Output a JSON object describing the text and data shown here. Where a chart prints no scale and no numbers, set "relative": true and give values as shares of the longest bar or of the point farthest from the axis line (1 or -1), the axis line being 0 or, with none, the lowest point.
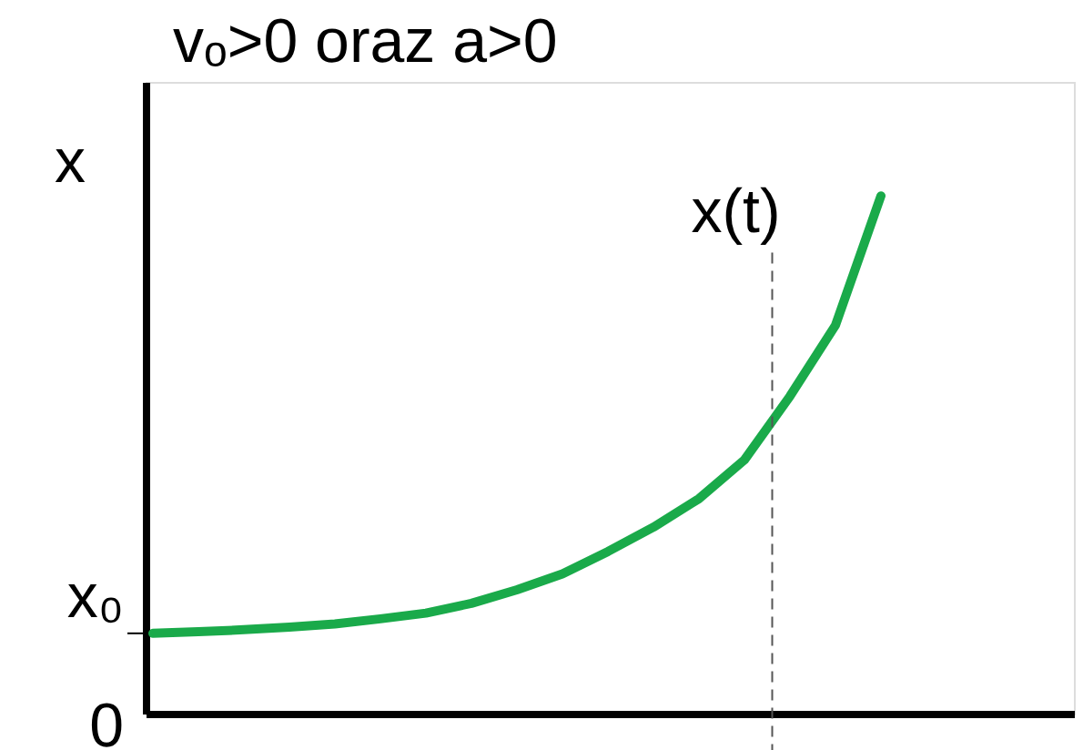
{
  "chart_data": {
    "type": "line",
    "relative": true,
    "title": "vₒ>0 oraz a>0",
    "ylabel": "x",
    "categories": [
      null,
      null,
      null,
      null,
      null,
      null,
      null,
      null,
      null,
      null,
      null,
      null,
      null,
      null,
      null,
      null,
      null
    ],
    "series": [
      {
        "name": "x(t)",
        "color": "#1aaa4a",
        "values": [
          0.155,
          0.158,
          0.162,
          0.167,
          0.173,
          0.183,
          0.194,
          0.213,
          0.239,
          0.27,
          0.313,
          0.36,
          0.415,
          0.49,
          0.613,
          0.75,
          1.0
        ]
      }
    ],
    "annotations": [
      "x₀",
      "0"
    ],
    "grid": false,
    "marker": "none",
    "line_style": "solid",
    "tick_labels": false
  }
}
